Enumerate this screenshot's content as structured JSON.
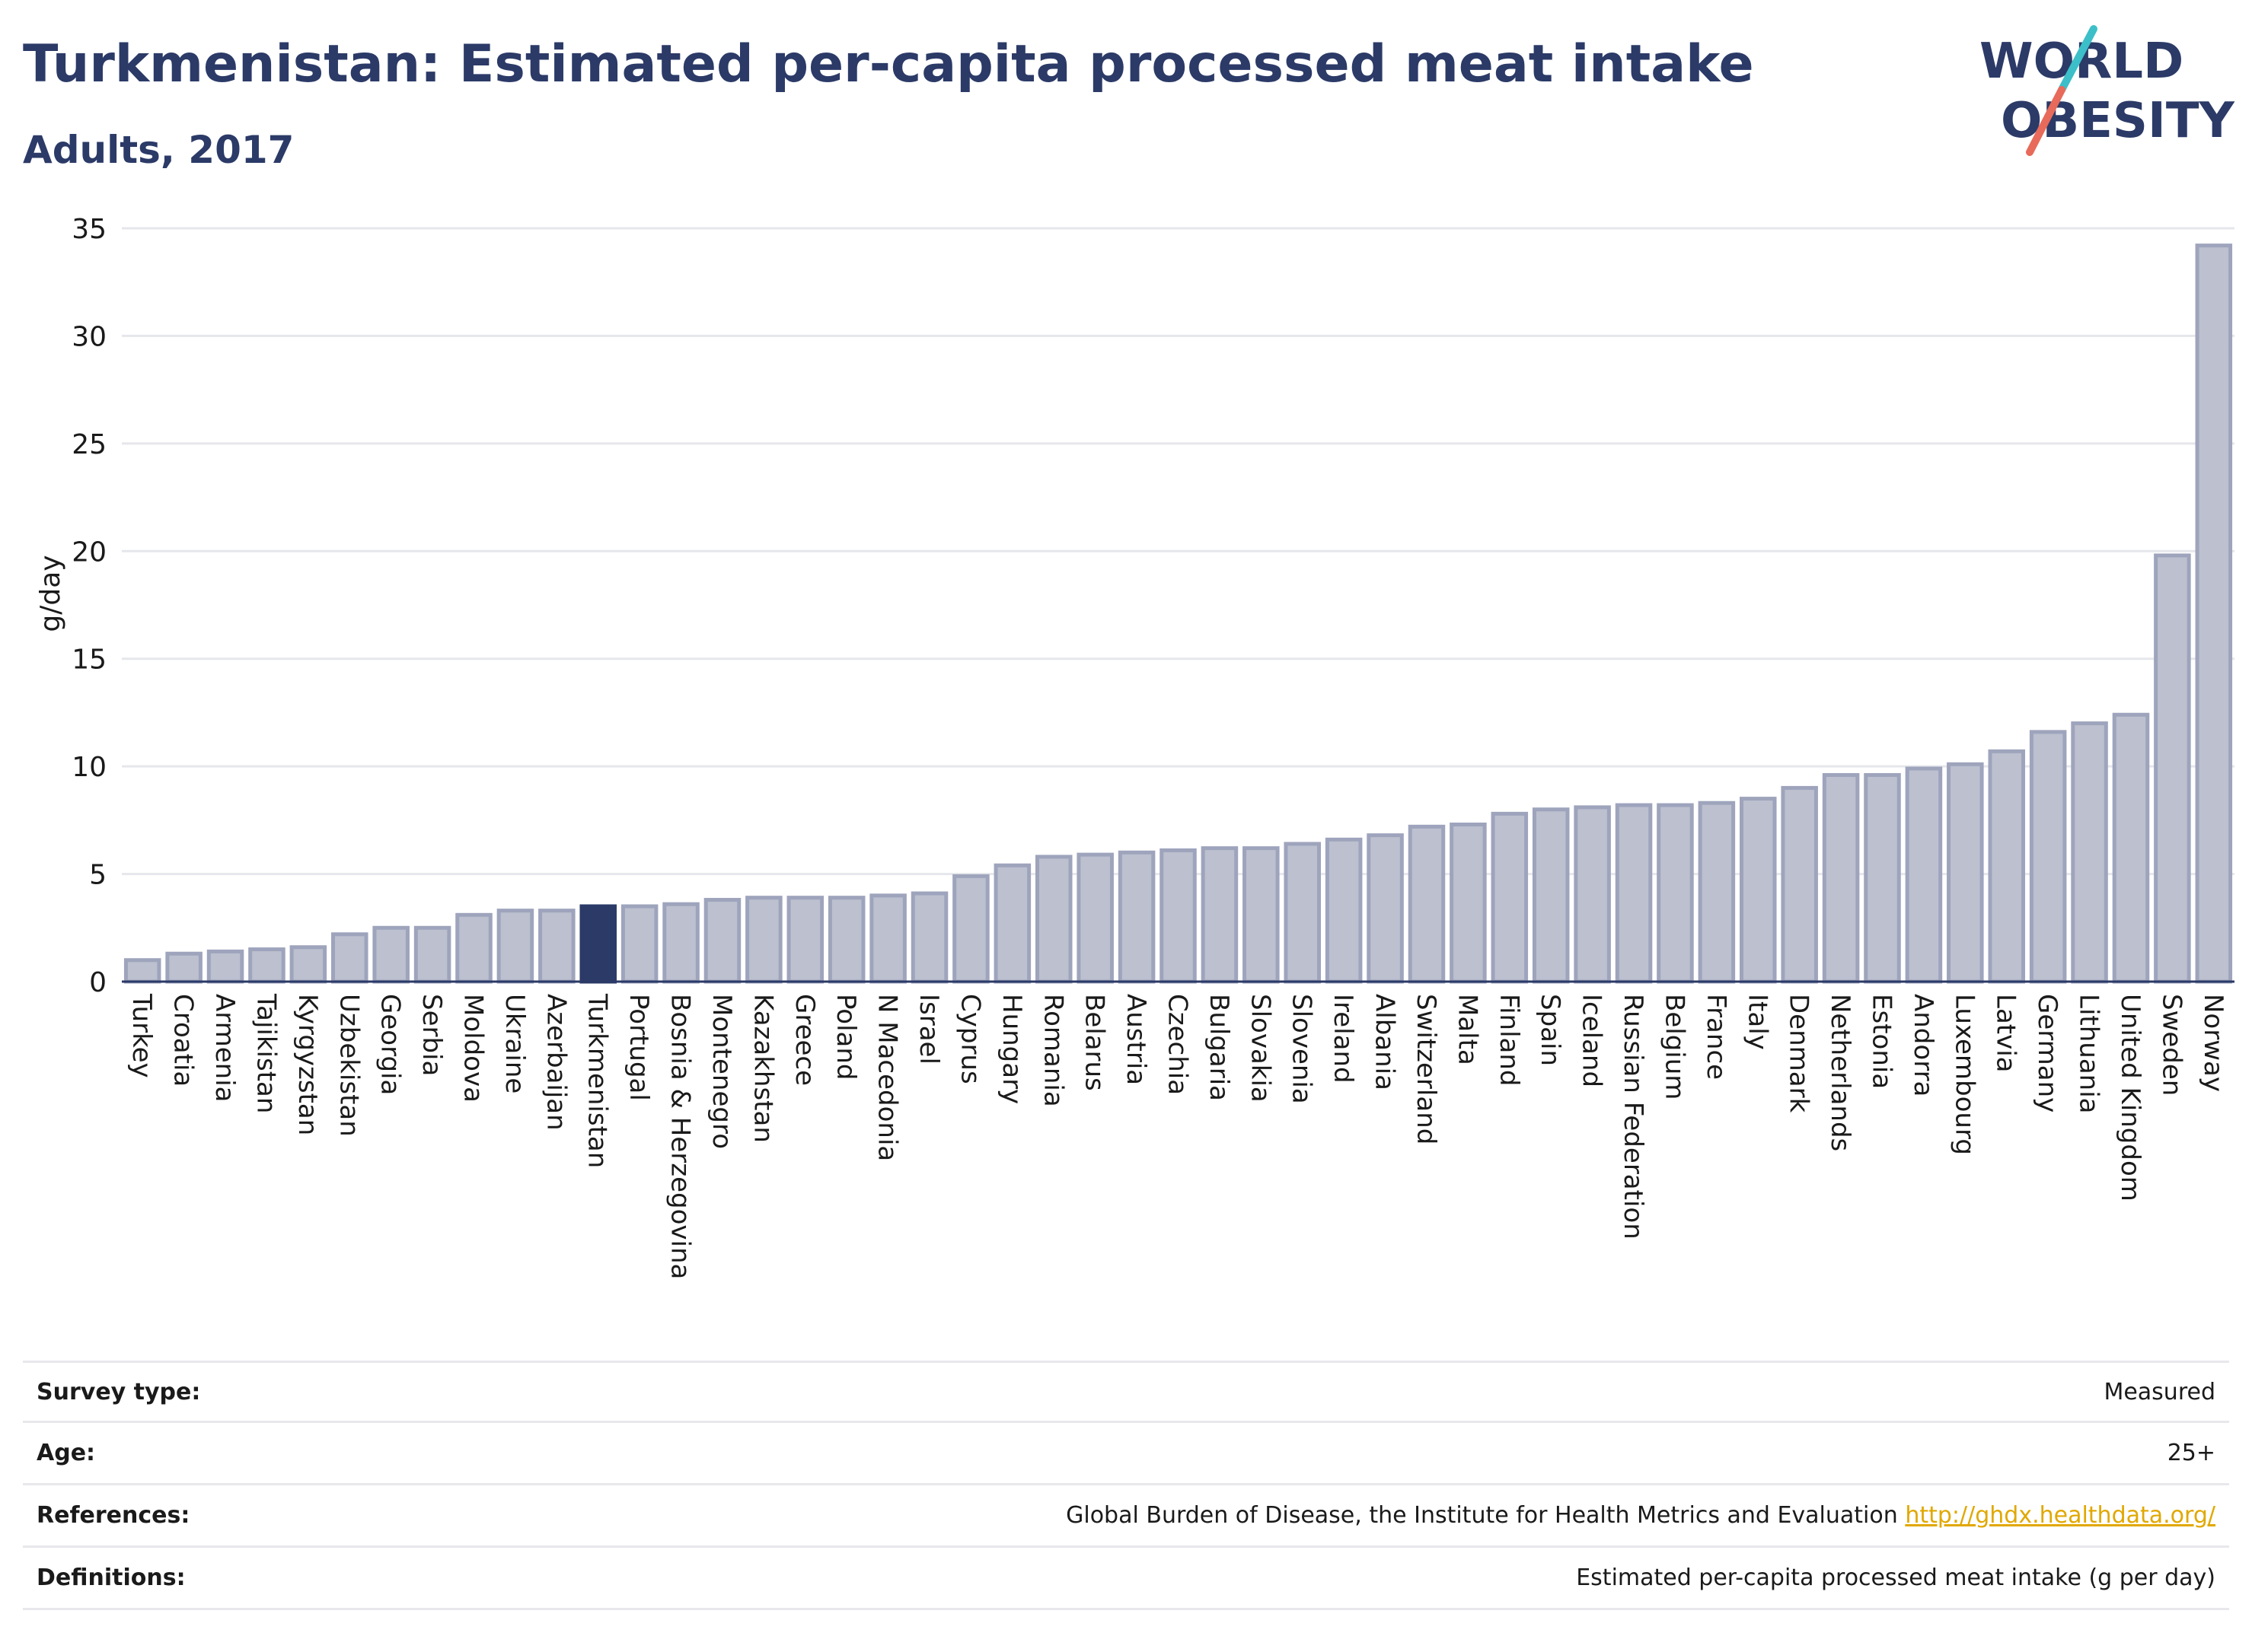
{
  "header": {
    "title": "Turkmenistan: Estimated per-capita processed meat intake",
    "subtitle": "Adults, 2017"
  },
  "logo": {
    "line1": "WORLD",
    "line2": "OBESITY",
    "accent_colors": [
      "#3cbfc8",
      "#e86a5a"
    ]
  },
  "colors": {
    "bar": "#bcc0cf",
    "bar_stroke": "#9ea4bc",
    "highlight": "#2b3a67",
    "title": "#2b3a67",
    "link": "#e0a800"
  },
  "chart_data": {
    "type": "bar",
    "ylabel": "g/day",
    "ylim": [
      0,
      35
    ],
    "yticks": [
      0,
      5,
      10,
      15,
      20,
      25,
      30,
      35
    ],
    "grid": true,
    "highlight": "Turkmenistan",
    "categories": [
      "Turkey",
      "Croatia",
      "Armenia",
      "Tajikistan",
      "Kyrgyzstan",
      "Uzbekistan",
      "Georgia",
      "Serbia",
      "Moldova",
      "Ukraine",
      "Azerbaijan",
      "Turkmenistan",
      "Portugal",
      "Bosnia & Herzegovina",
      "Montenegro",
      "Kazakhstan",
      "Greece",
      "Poland",
      "N Macedonia",
      "Israel",
      "Cyprus",
      "Hungary",
      "Romania",
      "Belarus",
      "Austria",
      "Czechia",
      "Bulgaria",
      "Slovakia",
      "Slovenia",
      "Ireland",
      "Albania",
      "Switzerland",
      "Malta",
      "Finland",
      "Spain",
      "Iceland",
      "Russian Federation",
      "Belgium",
      "France",
      "Italy",
      "Denmark",
      "Netherlands",
      "Estonia",
      "Andorra",
      "Luxembourg",
      "Latvia",
      "Germany",
      "Lithuania",
      "United Kingdom",
      "Sweden",
      "Norway"
    ],
    "values": [
      1.0,
      1.3,
      1.4,
      1.5,
      1.6,
      2.2,
      2.5,
      2.5,
      3.1,
      3.3,
      3.3,
      3.5,
      3.5,
      3.6,
      3.8,
      3.9,
      3.9,
      3.9,
      4.0,
      4.1,
      4.9,
      5.4,
      5.8,
      5.9,
      6.0,
      6.1,
      6.2,
      6.2,
      6.4,
      6.6,
      6.8,
      7.2,
      7.3,
      7.8,
      8.0,
      8.1,
      8.2,
      8.2,
      8.3,
      8.5,
      9.0,
      9.6,
      9.6,
      9.9,
      10.1,
      10.7,
      11.6,
      12.0,
      12.4,
      19.8,
      34.2
    ]
  },
  "meta": {
    "rows": [
      {
        "label": "Survey type:",
        "value": "Measured"
      },
      {
        "label": "Age:",
        "value": "25+"
      },
      {
        "label": "References:",
        "value": "Global Burden of Disease, the Institute for Health Metrics and Evaluation",
        "link": "http://ghdx.healthdata.org/"
      },
      {
        "label": "Definitions:",
        "value": "Estimated per-capita processed meat intake (g per day)"
      }
    ]
  }
}
